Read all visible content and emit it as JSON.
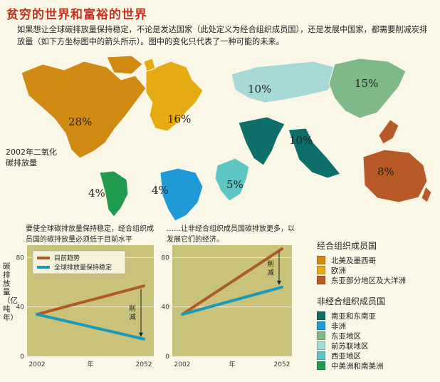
{
  "title": "贫穷的世界和富裕的世界",
  "intro": "如果想让全球碳排放量保持稳定，不论是发达国家（此处定义为经合组织成员国），还是发展中国家，都需要削减炭排放量（如下方坐标图中的箭头所示）。图中的变化只代表了一种可能的未来。",
  "map": {
    "emission_label": "2002年二氧化碳排放量",
    "regions": [
      {
        "name": "北美及墨西哥",
        "pct": "28%",
        "color": "#d08a12"
      },
      {
        "name": "欧洲",
        "pct": "16%",
        "color": "#e6ab12"
      },
      {
        "name": "东亚部分地区及大洋洲",
        "pct": "8%",
        "color": "#b85a28"
      },
      {
        "name": "南亚和东南亚",
        "pct": "10%",
        "color": "#0e6e6a"
      },
      {
        "name": "非洲",
        "pct": "4%",
        "color": "#1f9ad6"
      },
      {
        "name": "东亚地区",
        "pct": "15%",
        "color": "#7fb98a"
      },
      {
        "name": "前苏联地区",
        "pct": "10%",
        "color": "#a7d9d6"
      },
      {
        "name": "西亚地区",
        "pct": "5%",
        "color": "#5ec7c4"
      },
      {
        "name": "中美洲和南美洲",
        "pct": "4%",
        "color": "#1f9a4e"
      }
    ]
  },
  "chart_data": [
    {
      "type": "line",
      "title": "要使全球碳排放量保持稳定，经合组织成员国的碳排放量必须低于目前水平",
      "xlabel": "年",
      "ylabel": "碳排放量（亿吨年）",
      "x": [
        2002,
        2052
      ],
      "ylim": [
        0,
        90
      ],
      "yticks": [
        0,
        40,
        80
      ],
      "series": [
        {
          "name": "目前趋势",
          "color": "#b05a28",
          "values": [
            34,
            57
          ]
        },
        {
          "name": "全球排放量保持稳定",
          "color": "#1a9ab8",
          "values": [
            34,
            14
          ]
        }
      ],
      "annotation": "削减"
    },
    {
      "type": "line",
      "title": "……让非经合组织成员国碳排放更多，以发展它们的经济。",
      "xlabel": "年",
      "ylabel": "",
      "x": [
        2002,
        2052
      ],
      "ylim": [
        0,
        90
      ],
      "yticks": [
        0,
        40,
        80
      ],
      "series": [
        {
          "name": "目前趋势",
          "color": "#b05a28",
          "values": [
            34,
            87
          ]
        },
        {
          "name": "全球排放量保持稳定",
          "color": "#1a9ab8",
          "values": [
            34,
            56
          ]
        }
      ],
      "annotation": "削减"
    }
  ],
  "legend": {
    "oecd_title": "经合组织成员国",
    "oecd": [
      {
        "label": "北美及墨西哥",
        "color": "#d08a12"
      },
      {
        "label": "欧洲",
        "color": "#e6ab12"
      },
      {
        "label": "东亚部分地区及大洋洲",
        "color": "#b85a28"
      }
    ],
    "non_oecd_title": "非经合组织成员国",
    "non_oecd": [
      {
        "label": "南亚和东南亚",
        "color": "#0e6e6a"
      },
      {
        "label": "非洲",
        "color": "#1f9ad6"
      },
      {
        "label": "东亚地区",
        "color": "#7fb98a"
      },
      {
        "label": "前苏联地区",
        "color": "#a7d9d6"
      },
      {
        "label": "西亚地区",
        "color": "#5ec7c4"
      },
      {
        "label": "中美洲和南美洲",
        "color": "#1f9a4e"
      }
    ]
  }
}
